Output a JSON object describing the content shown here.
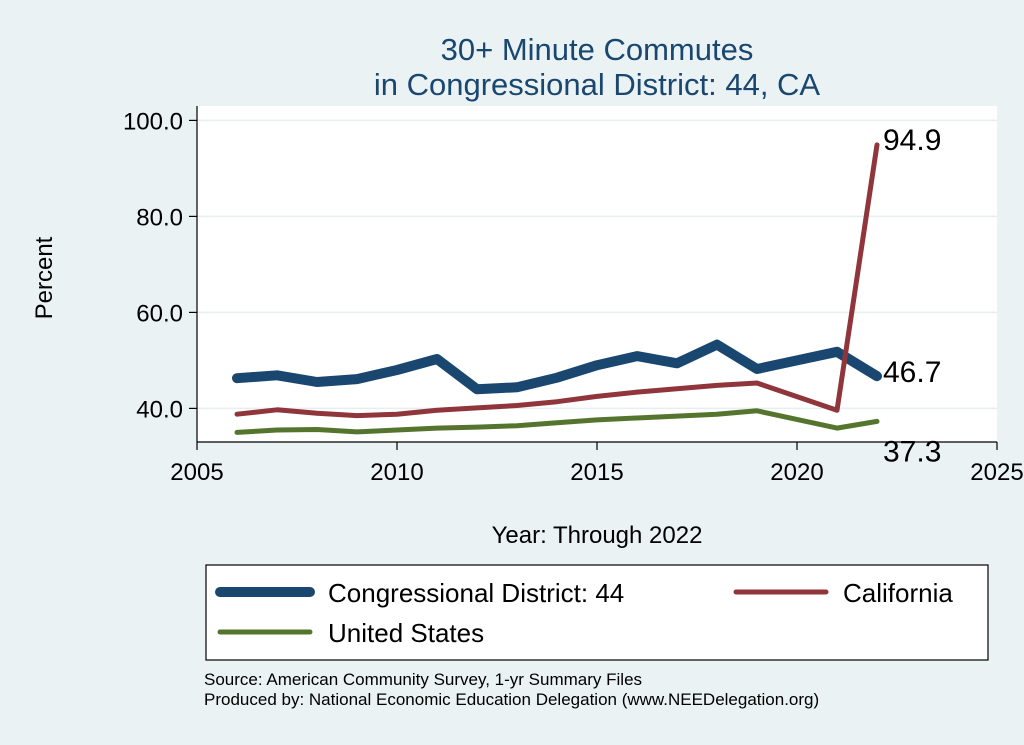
{
  "chart_data": {
    "type": "line",
    "title": [
      "30+ Minute Commutes",
      "in Congressional District:  44, CA"
    ],
    "xlabel": "Year: Through 2022",
    "ylabel": "Percent",
    "xlim": [
      2005,
      2025
    ],
    "ylim": [
      33,
      103
    ],
    "xticks": [
      2005,
      2010,
      2015,
      2020,
      2025
    ],
    "yticks": [
      40,
      60,
      80,
      100
    ],
    "ytick_labels": [
      "40.0",
      "60.0",
      "80.0",
      "100.0"
    ],
    "grid": true,
    "legend_position": "bottom",
    "x": [
      2006,
      2007,
      2008,
      2009,
      2010,
      2011,
      2012,
      2013,
      2014,
      2015,
      2016,
      2017,
      2018,
      2019,
      2020,
      2021,
      2022
    ],
    "series": [
      {
        "name": "Congressional District:  44",
        "color": "#1a476f",
        "width": 10,
        "values": [
          46.3,
          46.9,
          45.5,
          46.1,
          48.0,
          50.3,
          44.0,
          44.4,
          46.4,
          49.0,
          50.9,
          49.4,
          53.3,
          48.2,
          50.0,
          51.8,
          46.7
        ],
        "end_label": "46.7"
      },
      {
        "name": "California",
        "color": "#90353b",
        "width": 5,
        "values": [
          38.8,
          39.7,
          39.0,
          38.5,
          38.8,
          39.6,
          40.1,
          40.6,
          41.4,
          42.5,
          43.4,
          44.1,
          44.8,
          45.3,
          null,
          39.6,
          94.9
        ],
        "end_label": "94.9"
      },
      {
        "name": "United States",
        "color": "#55752f",
        "width": 5,
        "values": [
          35.0,
          35.5,
          35.6,
          35.1,
          35.5,
          35.9,
          36.1,
          36.4,
          37.0,
          37.6,
          38.0,
          38.4,
          38.8,
          39.5,
          null,
          35.9,
          37.3
        ],
        "end_label": "37.3"
      }
    ]
  },
  "footer": {
    "source": "Source: American Community Survey, 1-yr Summary Files",
    "produced_by": "Produced by: National Economic Education Delegation (www.NEEDelegation.org)"
  }
}
